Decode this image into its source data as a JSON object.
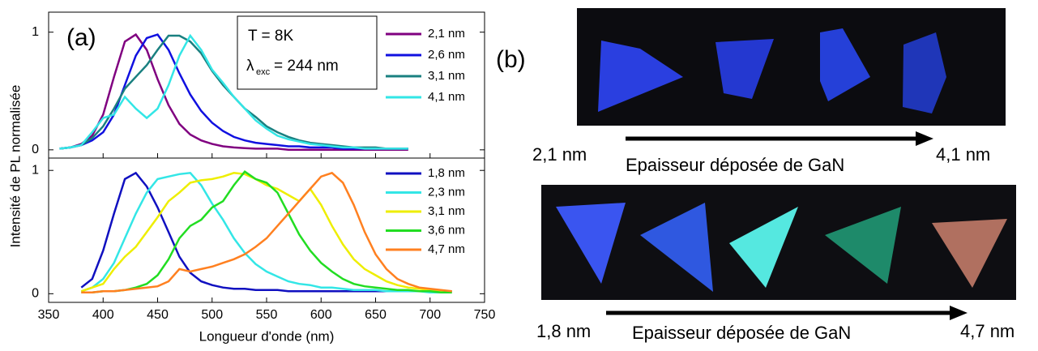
{
  "ylabel": "Intensité de PL normalisée",
  "panel_a": "(a)",
  "panel_b": "(b)",
  "annotation": {
    "line1": "T = 8K",
    "symbol": "λ",
    "subscript": "exc",
    "line2": "= 244 nm"
  },
  "photo_top": {
    "start": "2,1 nm",
    "caption": "Epaisseur déposée de GaN",
    "end": "4,1 nm"
  },
  "photo_bottom": {
    "start": "1,8 nm",
    "caption": "Epaisseur déposée de GaN",
    "end": "4,7 nm"
  },
  "chart_data": [
    {
      "type": "line",
      "x": [
        360,
        370,
        380,
        390,
        400,
        410,
        420,
        430,
        440,
        450,
        460,
        470,
        480,
        490,
        500,
        510,
        520,
        530,
        540,
        550,
        560,
        570,
        580,
        590,
        600,
        610,
        620,
        630,
        640,
        650,
        660,
        670,
        680
      ],
      "xlim": [
        350,
        750
      ],
      "xticks": [
        350,
        400,
        450,
        500,
        550,
        600,
        650,
        700,
        750
      ],
      "ylim": [
        -0.07,
        1.17
      ],
      "yticks": [
        0,
        1
      ],
      "series": [
        {
          "name": "2,1 nm",
          "color": "#800080",
          "values": [
            0.01,
            0.02,
            0.05,
            0.12,
            0.3,
            0.62,
            0.92,
            0.98,
            0.85,
            0.6,
            0.38,
            0.22,
            0.13,
            0.08,
            0.05,
            0.03,
            0.02,
            0.015,
            0.01,
            0.01,
            0.01,
            0,
            0,
            0,
            0,
            0,
            0,
            0,
            0,
            0,
            0,
            0,
            0
          ]
        },
        {
          "name": "2,6 nm",
          "color": "#1010e0",
          "values": [
            0.01,
            0.02,
            0.04,
            0.08,
            0.15,
            0.3,
            0.55,
            0.8,
            0.95,
            0.98,
            0.85,
            0.65,
            0.47,
            0.33,
            0.23,
            0.16,
            0.11,
            0.08,
            0.06,
            0.05,
            0.04,
            0.03,
            0.03,
            0.02,
            0.02,
            0.02,
            0.01,
            0.01,
            0.01,
            0.01,
            0.01,
            0.01,
            0.01
          ]
        },
        {
          "name": "3,1 nm",
          "color": "#1a8080",
          "values": [
            0.01,
            0.02,
            0.04,
            0.1,
            0.2,
            0.35,
            0.52,
            0.62,
            0.72,
            0.85,
            0.97,
            0.97,
            0.92,
            0.82,
            0.67,
            0.55,
            0.45,
            0.35,
            0.28,
            0.2,
            0.15,
            0.11,
            0.08,
            0.06,
            0.05,
            0.04,
            0.03,
            0.02,
            0.02,
            0.02,
            0.01,
            0.01,
            0.01
          ]
        },
        {
          "name": "4,1 nm",
          "color": "#33e6e6",
          "values": [
            0.01,
            0.02,
            0.04,
            0.15,
            0.27,
            0.3,
            0.45,
            0.35,
            0.27,
            0.35,
            0.55,
            0.8,
            0.97,
            0.85,
            0.68,
            0.57,
            0.45,
            0.35,
            0.25,
            0.18,
            0.12,
            0.09,
            0.07,
            0.05,
            0.04,
            0.03,
            0.02,
            0.02,
            0.01,
            0.01,
            0.01,
            0.01,
            0.01
          ]
        }
      ]
    },
    {
      "type": "line",
      "xlabel": "Longueur d'onde (nm)",
      "x": [
        380,
        390,
        400,
        410,
        420,
        430,
        440,
        450,
        460,
        470,
        480,
        490,
        500,
        510,
        520,
        530,
        540,
        550,
        560,
        570,
        580,
        590,
        600,
        610,
        620,
        630,
        640,
        650,
        660,
        670,
        680,
        690,
        700,
        710,
        720
      ],
      "xlim": [
        350,
        750
      ],
      "xticks": [
        350,
        400,
        450,
        500,
        550,
        600,
        650,
        700,
        750
      ],
      "ylim": [
        -0.07,
        1.1
      ],
      "yticks": [
        0,
        1
      ],
      "series": [
        {
          "name": "1,8 nm",
          "color": "#1010c0",
          "values": [
            0.05,
            0.12,
            0.35,
            0.65,
            0.93,
            0.98,
            0.87,
            0.7,
            0.5,
            0.3,
            0.17,
            0.1,
            0.07,
            0.05,
            0.04,
            0.04,
            0.03,
            0.03,
            0.03,
            0.02,
            0.02,
            0.02,
            0.02,
            0.02,
            0.02,
            0.02,
            0.02,
            0.02,
            0.02,
            0.02,
            0.02,
            0.02,
            0.02,
            0.02,
            0.02
          ]
        },
        {
          "name": "2,3 nm",
          "color": "#33e6e6",
          "values": [
            0.02,
            0.05,
            0.12,
            0.25,
            0.45,
            0.65,
            0.82,
            0.93,
            0.95,
            0.97,
            0.98,
            0.88,
            0.73,
            0.6,
            0.45,
            0.33,
            0.24,
            0.18,
            0.14,
            0.1,
            0.08,
            0.07,
            0.05,
            0.05,
            0.04,
            0.03,
            0.03,
            0.03,
            0.02,
            0.02,
            0.02,
            0.02,
            0.01,
            0.01,
            0.01
          ]
        },
        {
          "name": "3,1 nm",
          "color": "#eeee00",
          "values": [
            0.02,
            0.05,
            0.08,
            0.2,
            0.3,
            0.38,
            0.5,
            0.62,
            0.75,
            0.82,
            0.9,
            0.92,
            0.93,
            0.95,
            0.98,
            0.97,
            0.93,
            0.88,
            0.85,
            0.8,
            0.75,
            0.85,
            0.72,
            0.55,
            0.4,
            0.28,
            0.2,
            0.15,
            0.1,
            0.07,
            0.05,
            0.04,
            0.03,
            0.02,
            0.02
          ]
        },
        {
          "name": "3,6 nm",
          "color": "#22dd22",
          "values": [
            0.01,
            0.01,
            0.02,
            0.02,
            0.03,
            0.05,
            0.08,
            0.15,
            0.28,
            0.45,
            0.55,
            0.6,
            0.7,
            0.75,
            0.88,
            0.99,
            0.93,
            0.9,
            0.82,
            0.65,
            0.48,
            0.35,
            0.25,
            0.18,
            0.12,
            0.08,
            0.06,
            0.05,
            0.04,
            0.03,
            0.03,
            0.02,
            0.02,
            0.01,
            0.01
          ]
        },
        {
          "name": "4,7 nm",
          "color": "#ff8020",
          "values": [
            0.01,
            0.01,
            0.02,
            0.02,
            0.03,
            0.04,
            0.05,
            0.06,
            0.1,
            0.2,
            0.18,
            0.2,
            0.22,
            0.25,
            0.28,
            0.32,
            0.38,
            0.45,
            0.55,
            0.65,
            0.75,
            0.85,
            0.95,
            0.98,
            0.9,
            0.72,
            0.5,
            0.32,
            0.2,
            0.12,
            0.08,
            0.05,
            0.04,
            0.03,
            0.02
          ]
        }
      ]
    }
  ]
}
